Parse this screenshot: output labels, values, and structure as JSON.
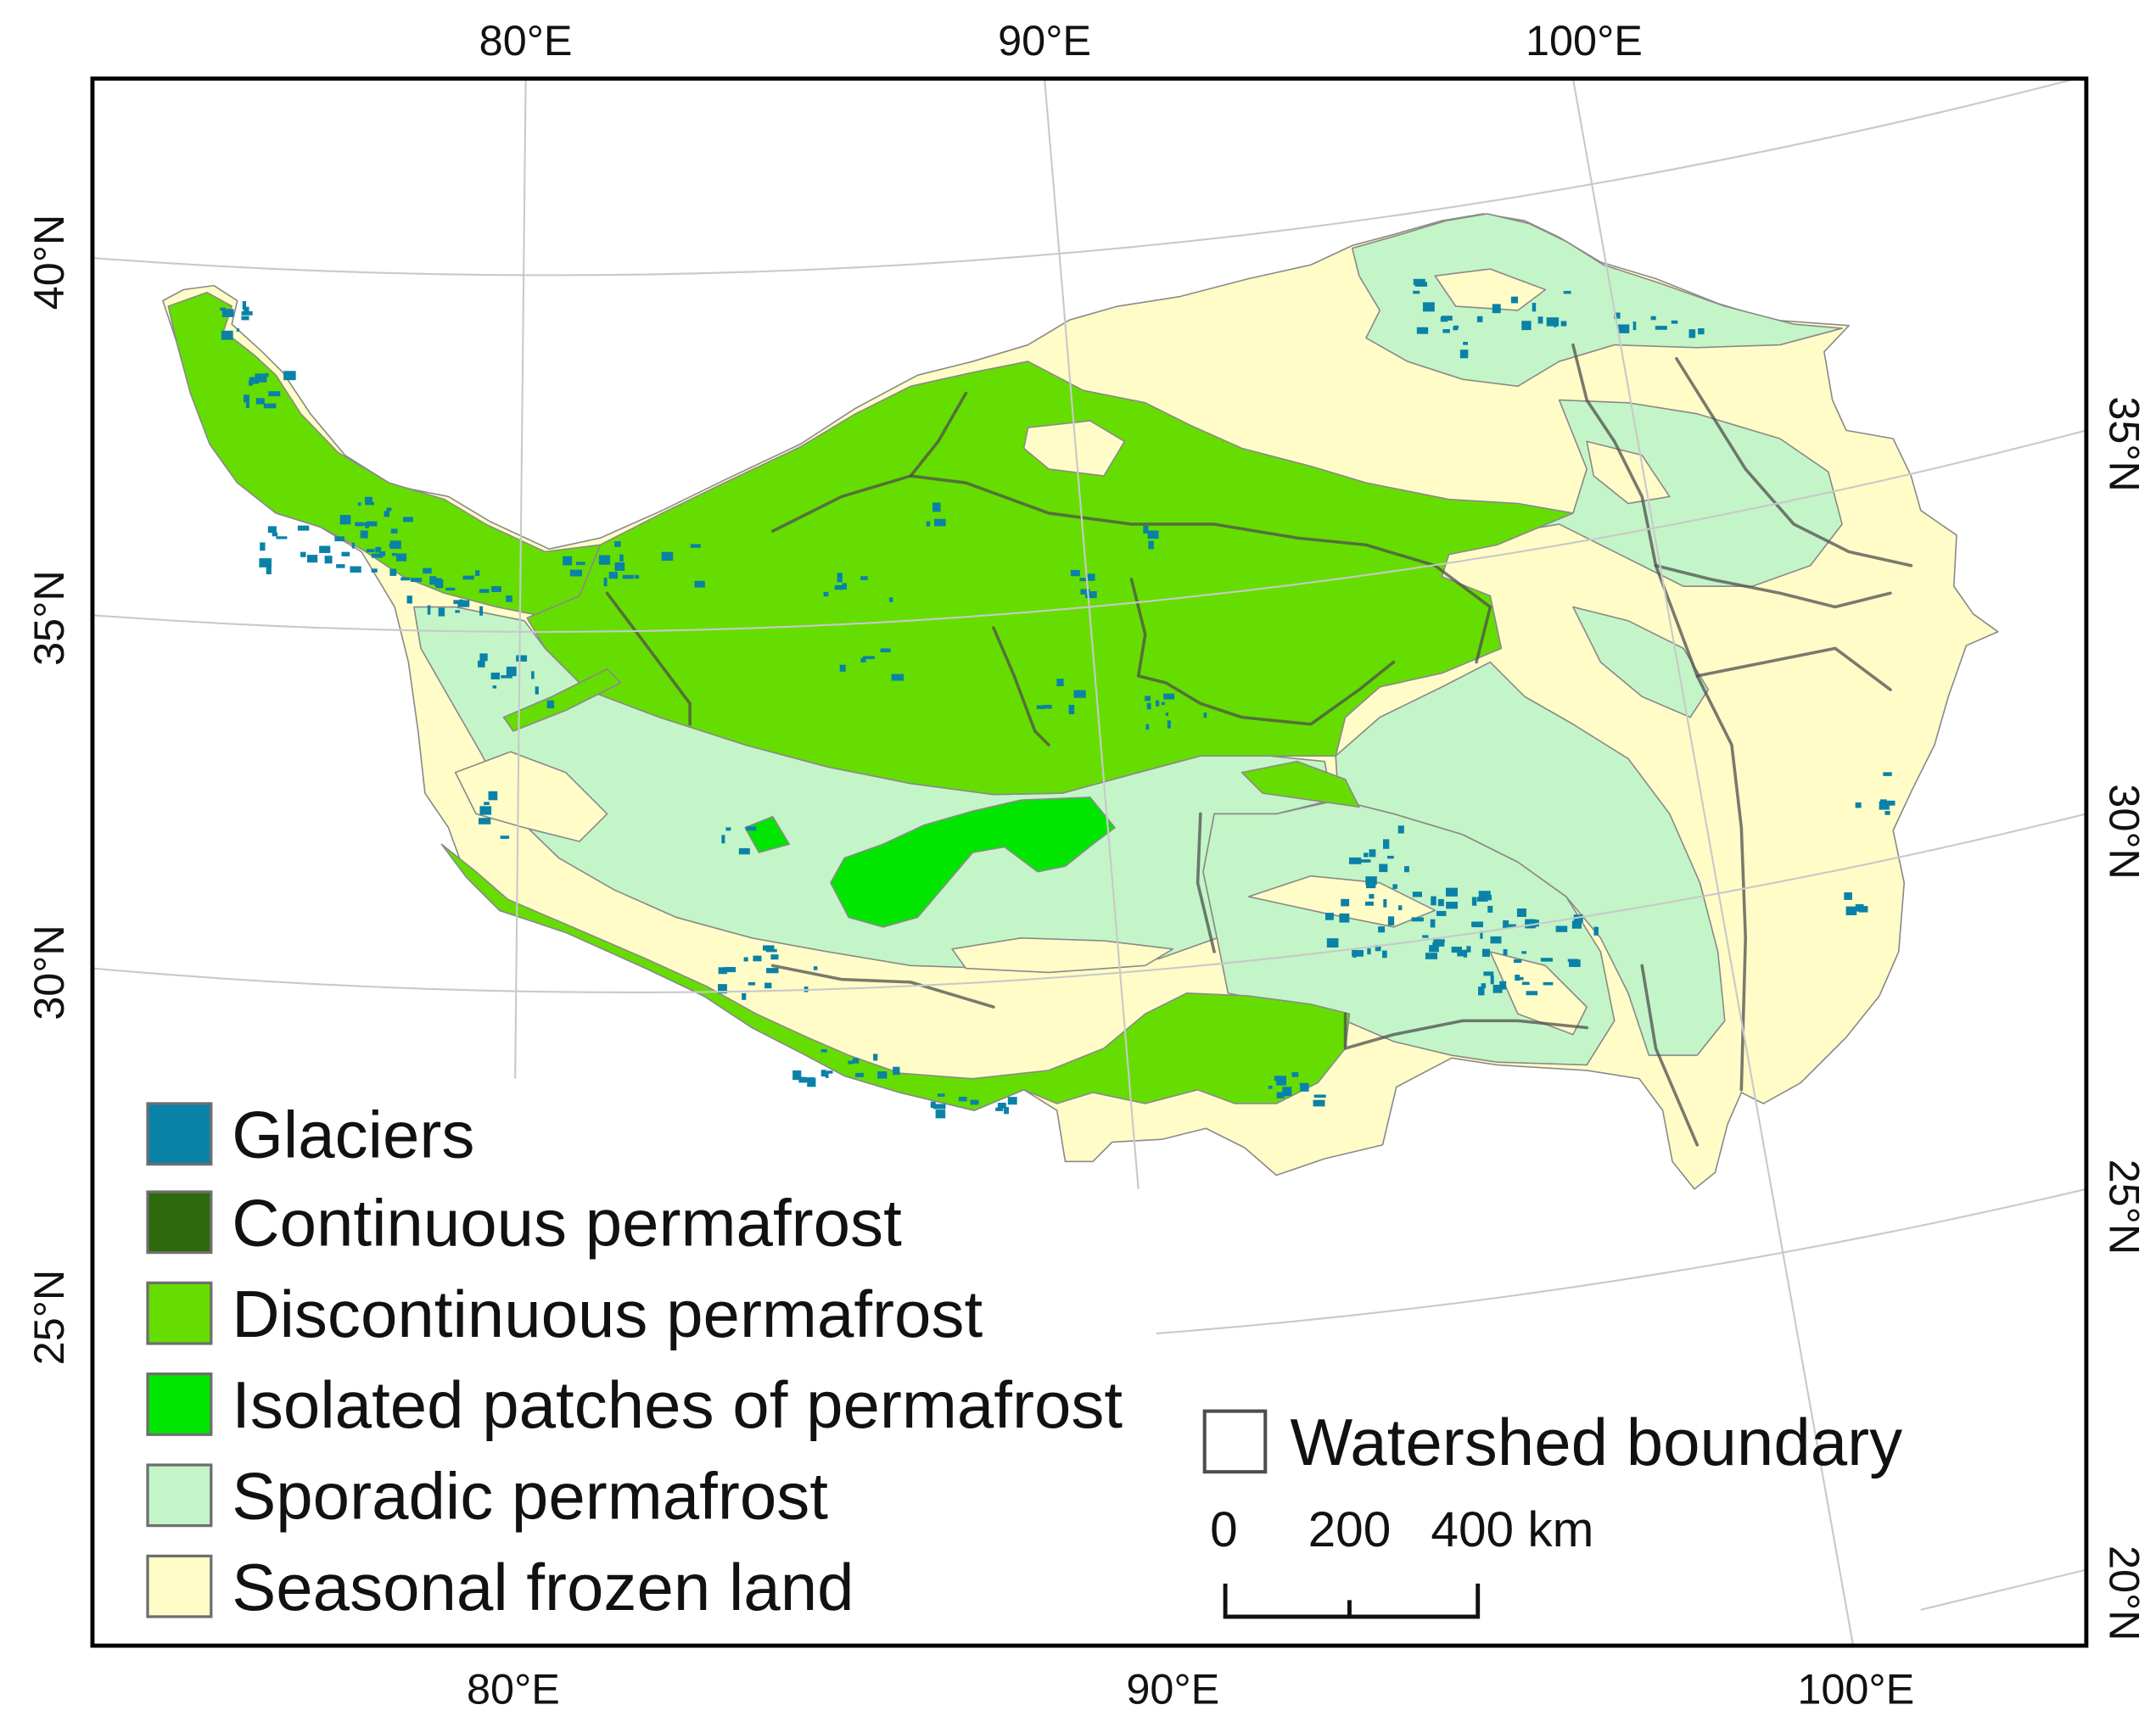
{
  "map": {
    "graticule_labels": {
      "top": [
        "80°E",
        "90°E",
        "100°E"
      ],
      "bottom": [
        "80°E",
        "90°E",
        "100°E"
      ],
      "left": [
        "40°N",
        "35°N",
        "30°N",
        "25°N"
      ],
      "right": [
        "35°N",
        "30°N",
        "25°N",
        "20°N"
      ]
    },
    "legend": {
      "items": [
        {
          "label": "Glaciers",
          "color": "#0a82a8"
        },
        {
          "label": "Continuous permafrost",
          "color": "#2d6a0e"
        },
        {
          "label": "Discontinuous permafrost",
          "color": "#66dd00"
        },
        {
          "label": "Isolated patches of permafrost",
          "color": "#00e600"
        },
        {
          "label": "Sporadic permafrost",
          "color": "#c4f5c8"
        },
        {
          "label": "Seasonal frozen land",
          "color": "#fffcc8"
        }
      ],
      "watershed": {
        "label": "Watershed boundary",
        "fill": "#ffffff",
        "stroke": "#4d4d4d"
      }
    },
    "scale_bar": {
      "ticks": [
        "0",
        "200",
        "400"
      ],
      "unit": "km"
    }
  }
}
